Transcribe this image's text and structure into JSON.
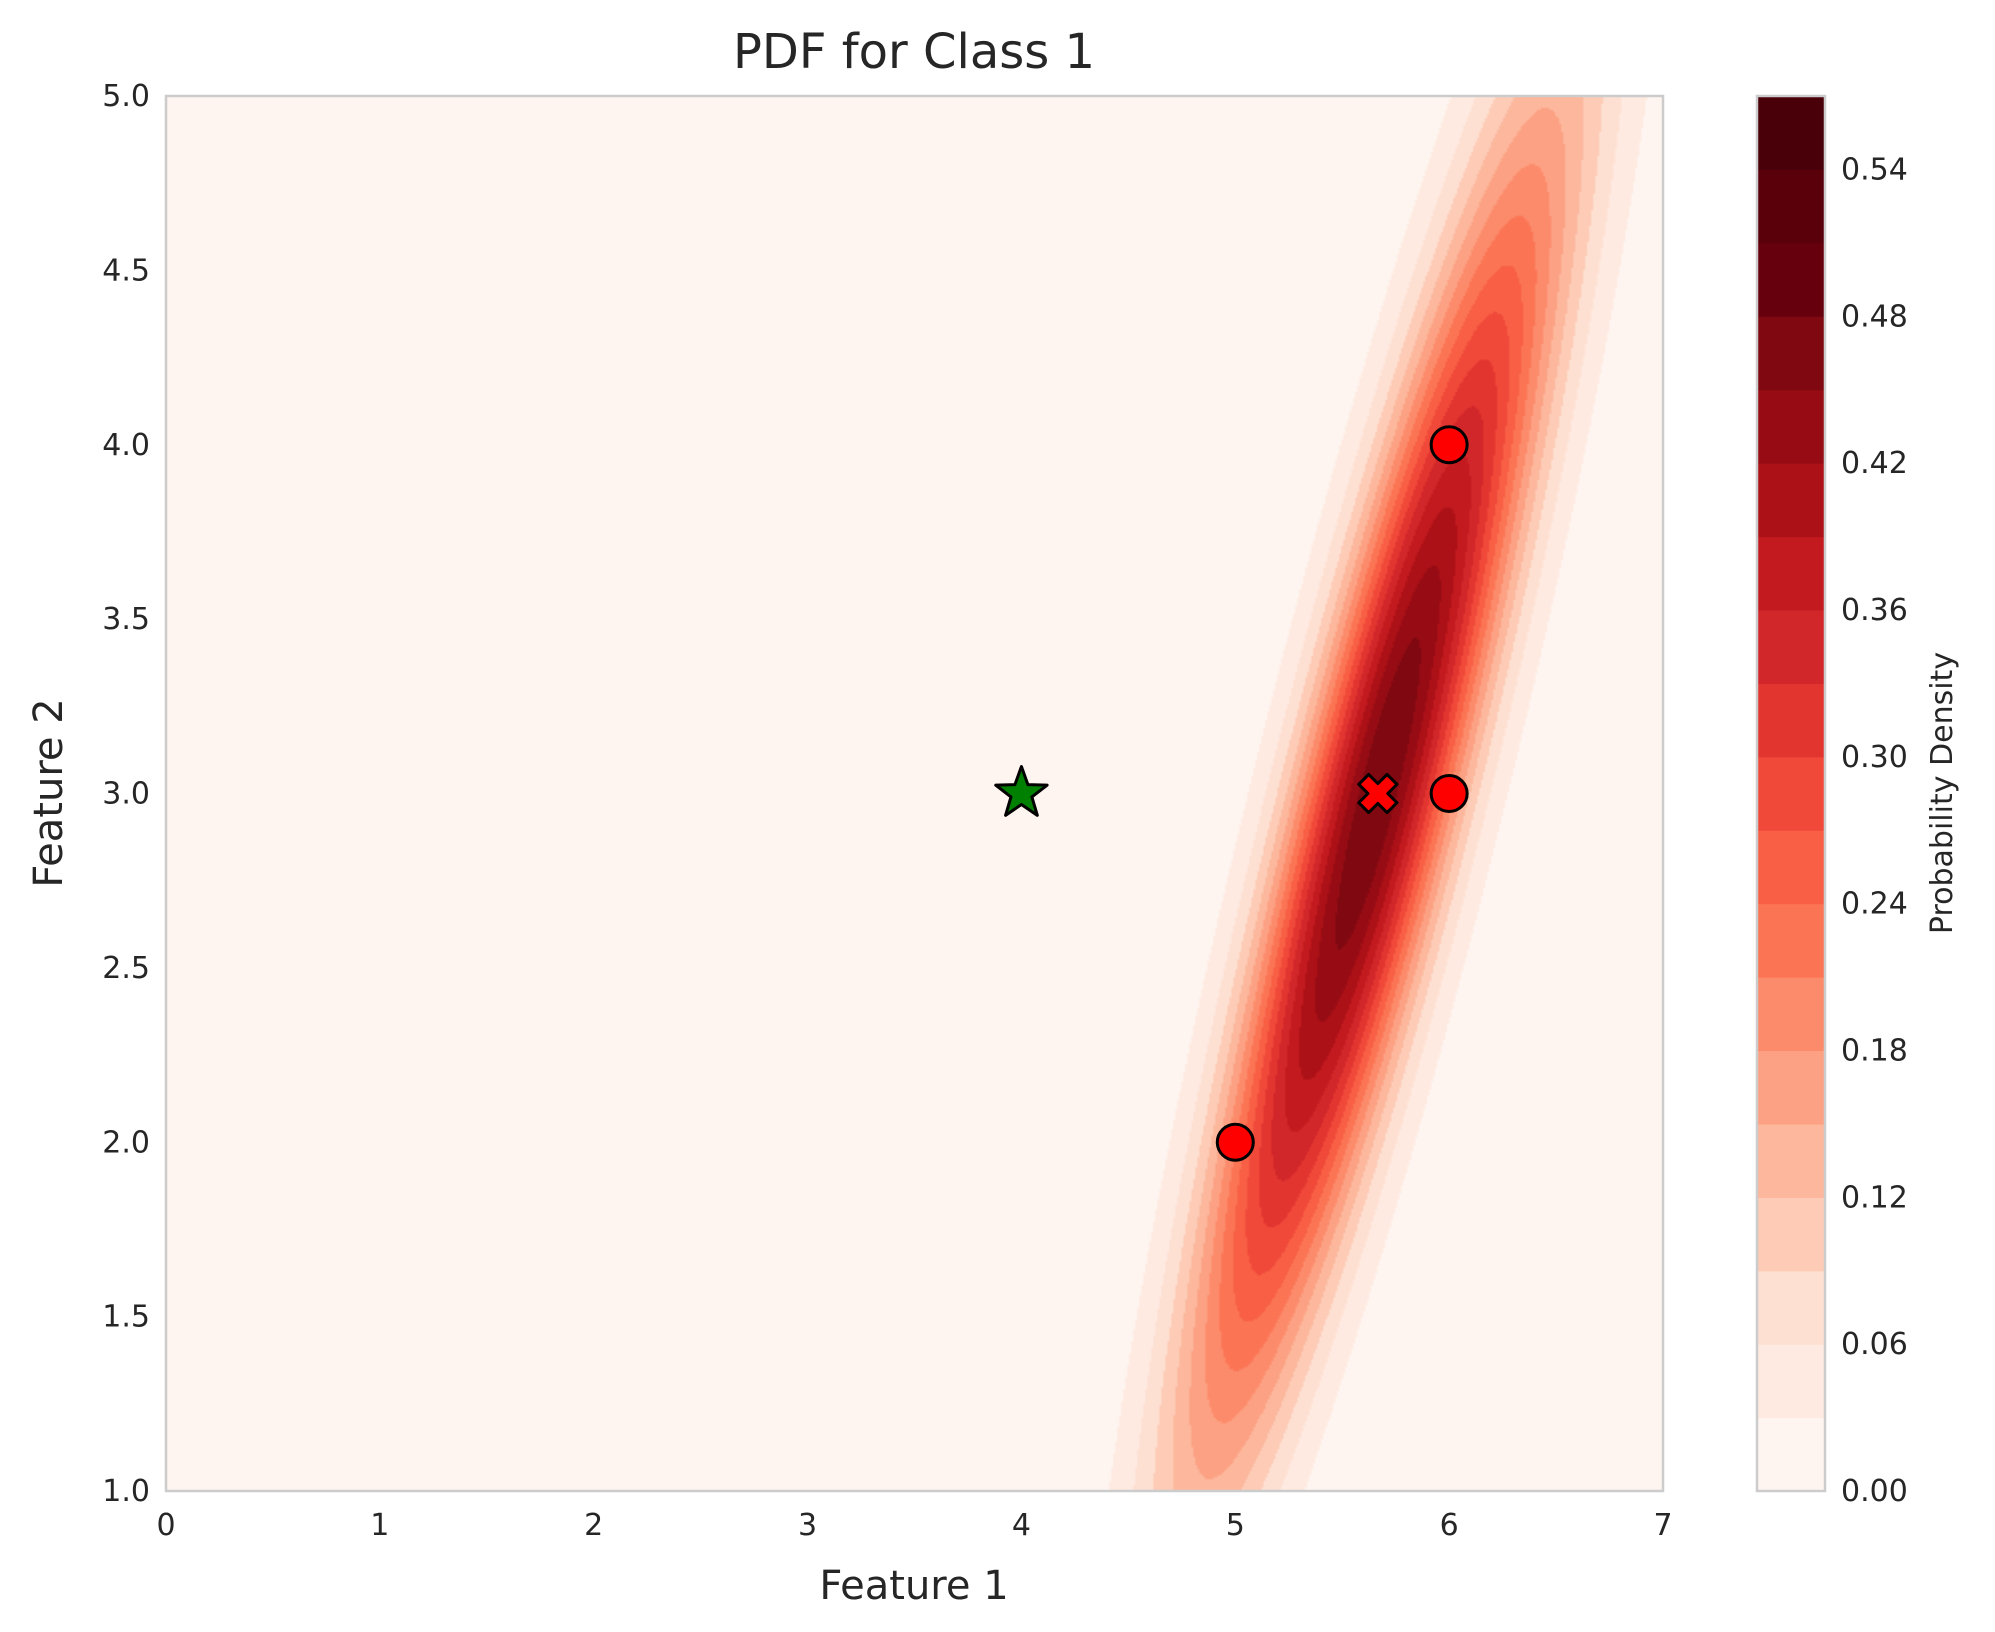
{
  "chart_data": {
    "type": "heatmap",
    "title": "PDF for Class 1",
    "xlabel": "Feature 1",
    "ylabel": "Feature 2",
    "xlim": [
      0,
      7
    ],
    "ylim": [
      1,
      5
    ],
    "x_ticks": [
      0,
      1,
      2,
      3,
      4,
      5,
      6,
      7
    ],
    "x_tick_labels": [
      "0",
      "1",
      "2",
      "3",
      "4",
      "5",
      "6",
      "7"
    ],
    "y_ticks": [
      1.0,
      1.5,
      2.0,
      2.5,
      3.0,
      3.5,
      4.0,
      4.5,
      5.0
    ],
    "y_tick_labels": [
      "1.0",
      "1.5",
      "2.0",
      "2.5",
      "3.0",
      "3.5",
      "4.0",
      "4.5",
      "5.0"
    ],
    "grid": false,
    "density": {
      "distribution": "bivariate-gaussian",
      "mean": [
        5.6667,
        3.0
      ],
      "covariance": [
        [
          0.3333,
          0.6667
        ],
        [
          0.6667,
          1.6667
        ]
      ],
      "contour_levels": [
        0.0,
        0.03,
        0.06,
        0.09,
        0.12,
        0.15,
        0.18,
        0.21,
        0.24,
        0.27,
        0.3,
        0.33,
        0.36,
        0.39,
        0.42,
        0.45,
        0.48,
        0.51,
        0.54,
        0.57
      ]
    },
    "colorbar": {
      "label": "Probability Density",
      "range": [
        0.0,
        0.57
      ],
      "ticks": [
        0.0,
        0.06,
        0.12,
        0.18,
        0.24,
        0.3,
        0.36,
        0.42,
        0.48,
        0.54
      ],
      "tick_labels": [
        "0.00",
        "0.06",
        "0.12",
        "0.18",
        "0.24",
        "0.30",
        "0.36",
        "0.42",
        "0.48",
        "0.54"
      ],
      "colors": [
        "#fff5f0",
        "#feeae1",
        "#fee0d2",
        "#fdcbb6",
        "#fcb79c",
        "#fca183",
        "#fc8b6b",
        "#fb7555",
        "#f85f44",
        "#f0493a",
        "#e33530",
        "#d1272a",
        "#c21a1e",
        "#ac1117",
        "#970c14",
        "#7f0811",
        "#67000d",
        "#5a000b",
        "#4a0008"
      ]
    },
    "points": [
      {
        "x": 5,
        "y": 2,
        "marker": "circle",
        "color": "#ff0000"
      },
      {
        "x": 6,
        "y": 3,
        "marker": "circle",
        "color": "#ff0000"
      },
      {
        "x": 6,
        "y": 4,
        "marker": "circle",
        "color": "#ff0000"
      },
      {
        "x": 5.6667,
        "y": 3.0,
        "marker": "x-filled",
        "color": "#ff0000"
      },
      {
        "x": 4,
        "y": 3,
        "marker": "star",
        "color": "#008000"
      }
    ]
  }
}
